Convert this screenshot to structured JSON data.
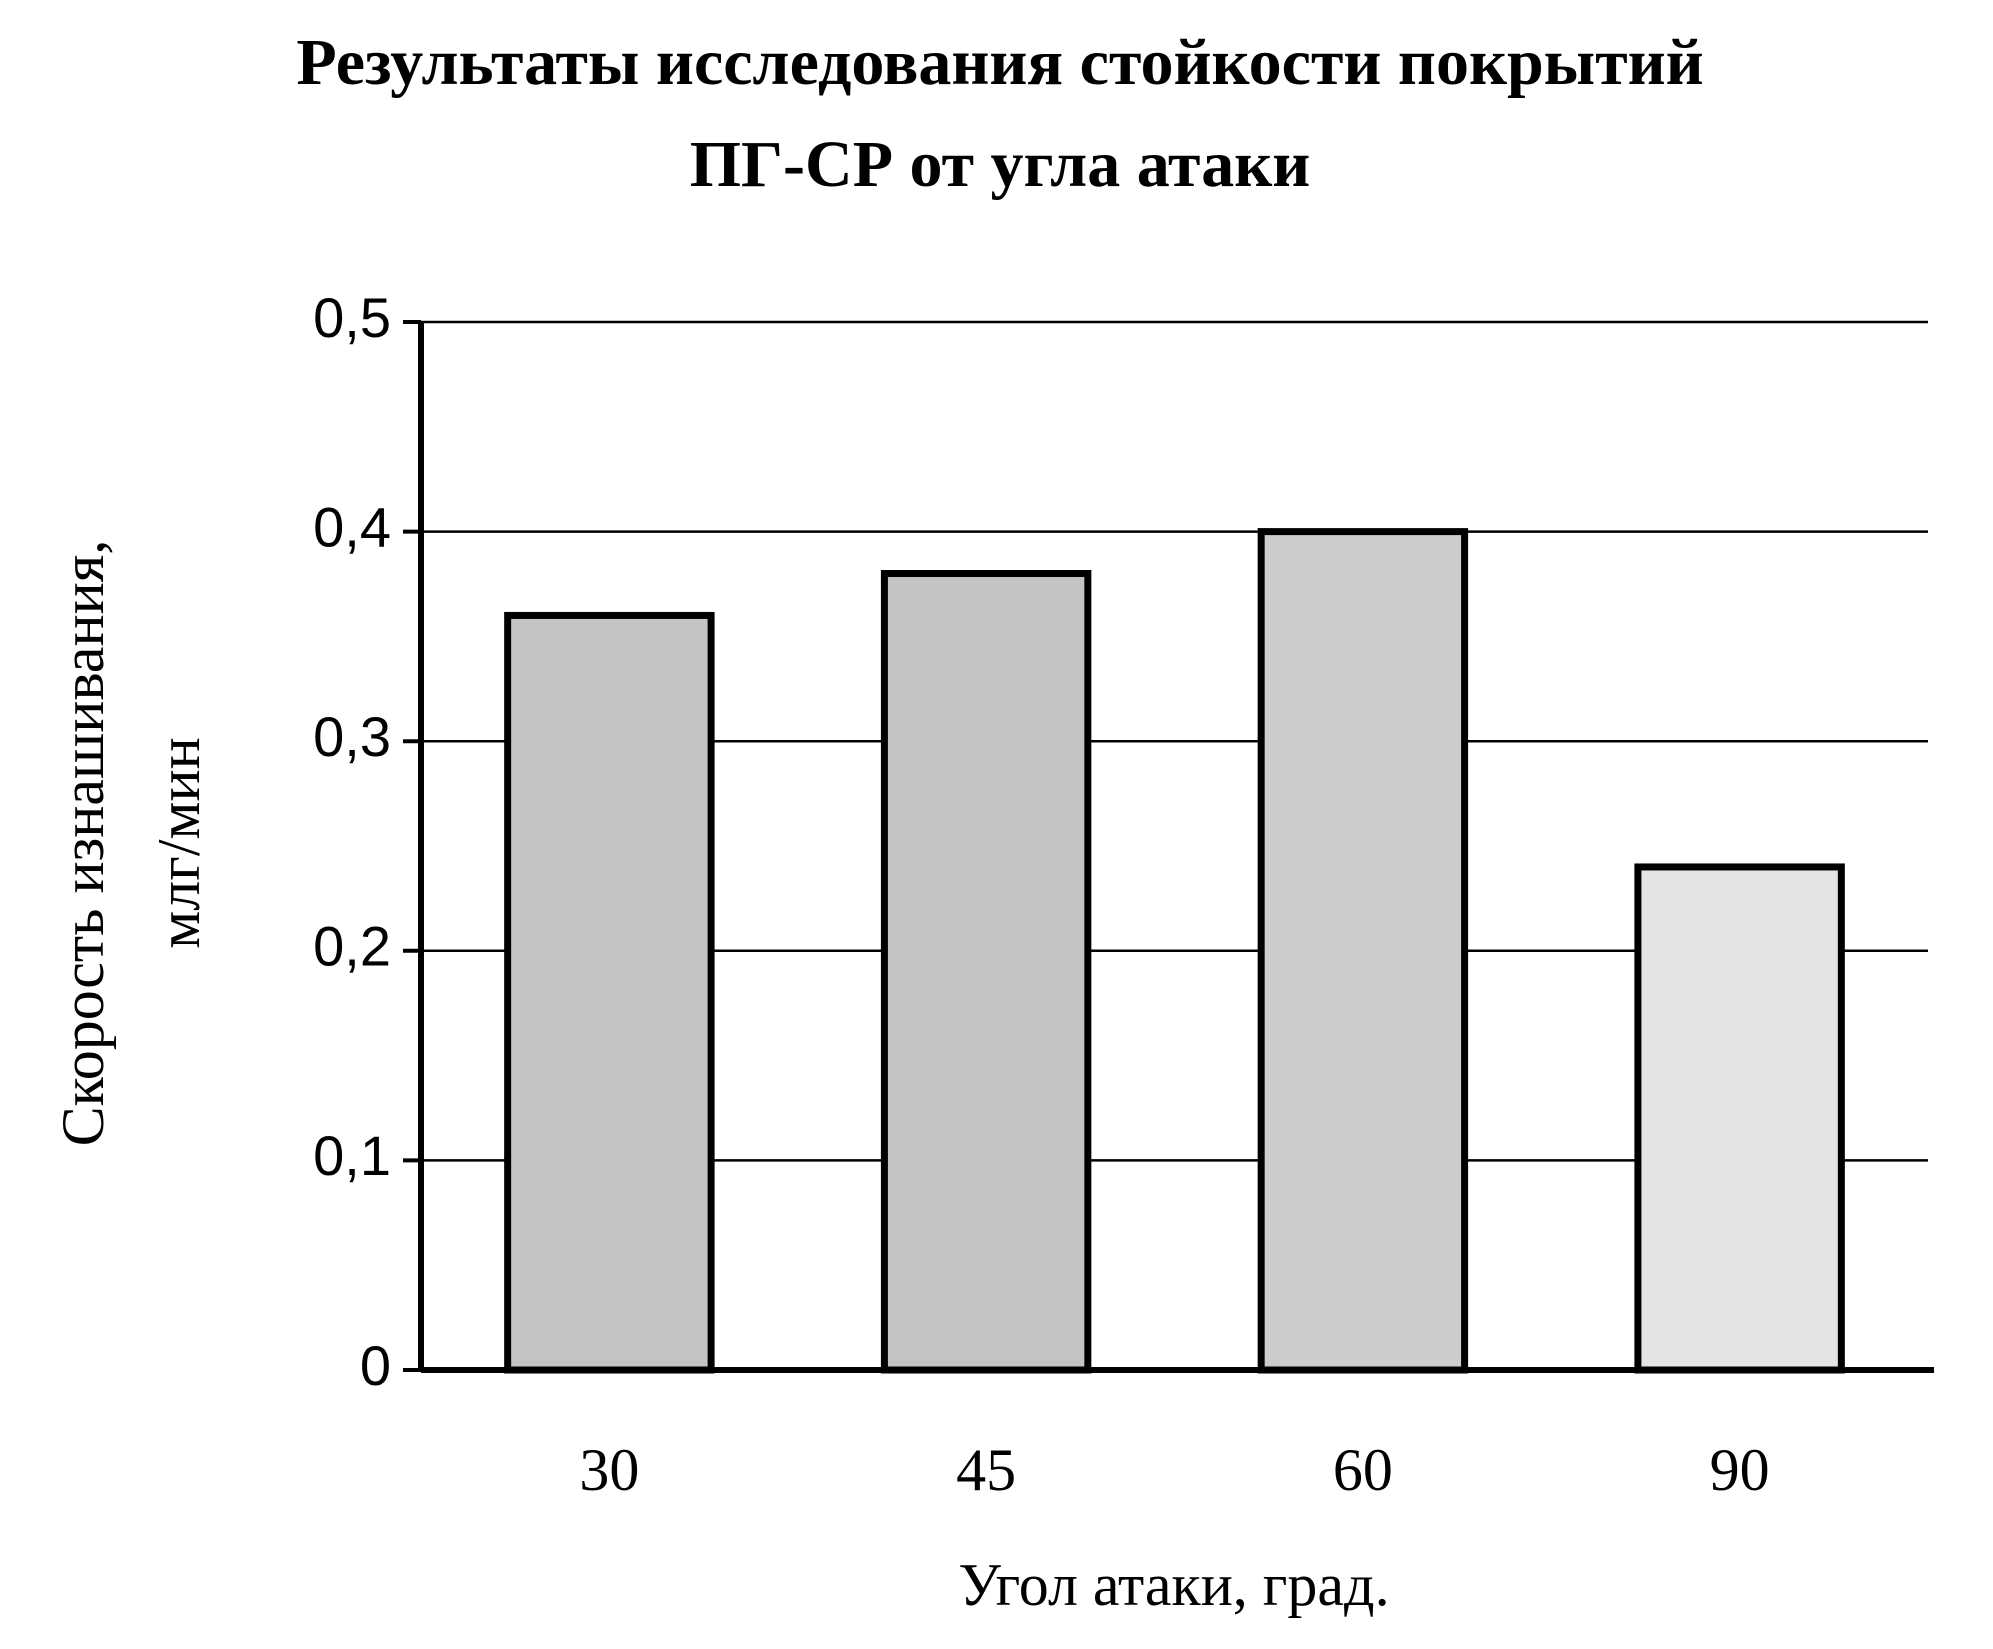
{
  "chart_data": {
    "type": "bar",
    "title": [
      "Результаты исследования стойкости покрытий",
      "ПГ-СР от угла атаки"
    ],
    "xlabel": "Угол атаки, град.",
    "ylabel": [
      "Скорость изнашивания,",
      "млг/мин"
    ],
    "categories": [
      "30",
      "45",
      "60",
      "90"
    ],
    "values": [
      0.36,
      0.38,
      0.4,
      0.24
    ],
    "colors": [
      "#c4c4c4",
      "#c4c4c4",
      "#cccccc",
      "#e4e4e4"
    ],
    "ylim": [
      0,
      0.5
    ],
    "yticks": [
      0,
      {
        "value": 0.1,
        "label": "0,1"
      },
      {
        "value": 0.2,
        "label": "0,2"
      },
      {
        "value": 0.3,
        "label": "0,3"
      },
      {
        "value": 0.4,
        "label": "0,4"
      },
      {
        "value": 0.5,
        "label": "0,5"
      }
    ],
    "grid": true
  }
}
